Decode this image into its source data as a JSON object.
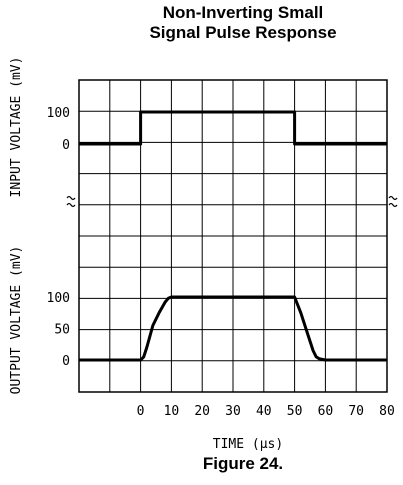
{
  "chart_data": {
    "type": "line",
    "title": "Non-Inverting Small\nSignal Pulse Response",
    "caption": "Figure 24.",
    "xlabel": "TIME (μs)",
    "xlim": [
      -20,
      80
    ],
    "xticks": [
      0,
      10,
      20,
      30,
      40,
      50,
      60,
      70,
      80
    ],
    "panels": [
      {
        "name": "input",
        "ylabel": "INPUT VOLTAGE (mV)",
        "yticks": [
          100,
          0
        ],
        "series": [
          {
            "x": [
              -20,
              0,
              0,
              50,
              50,
              80
            ],
            "y": [
              0,
              0,
              100,
              100,
              0,
              0
            ]
          }
        ]
      },
      {
        "name": "output",
        "ylabel": "OUTPUT VOLTAGE (mV)",
        "yticks": [
          100,
          50,
          0
        ],
        "series": [
          {
            "x": [
              -20,
              0,
              1,
              2,
              4,
              6,
              8,
              9,
              10,
              20,
              30,
              40,
              50,
              52,
              54,
              56,
              57,
              58,
              60,
              70,
              80
            ],
            "y": [
              0,
              0,
              5,
              20,
              55,
              75,
              92,
              98,
              100,
              100,
              100,
              100,
              100,
              75,
              45,
              15,
              5,
              2,
              0,
              0,
              0
            ]
          }
        ]
      }
    ],
    "grid": true
  }
}
